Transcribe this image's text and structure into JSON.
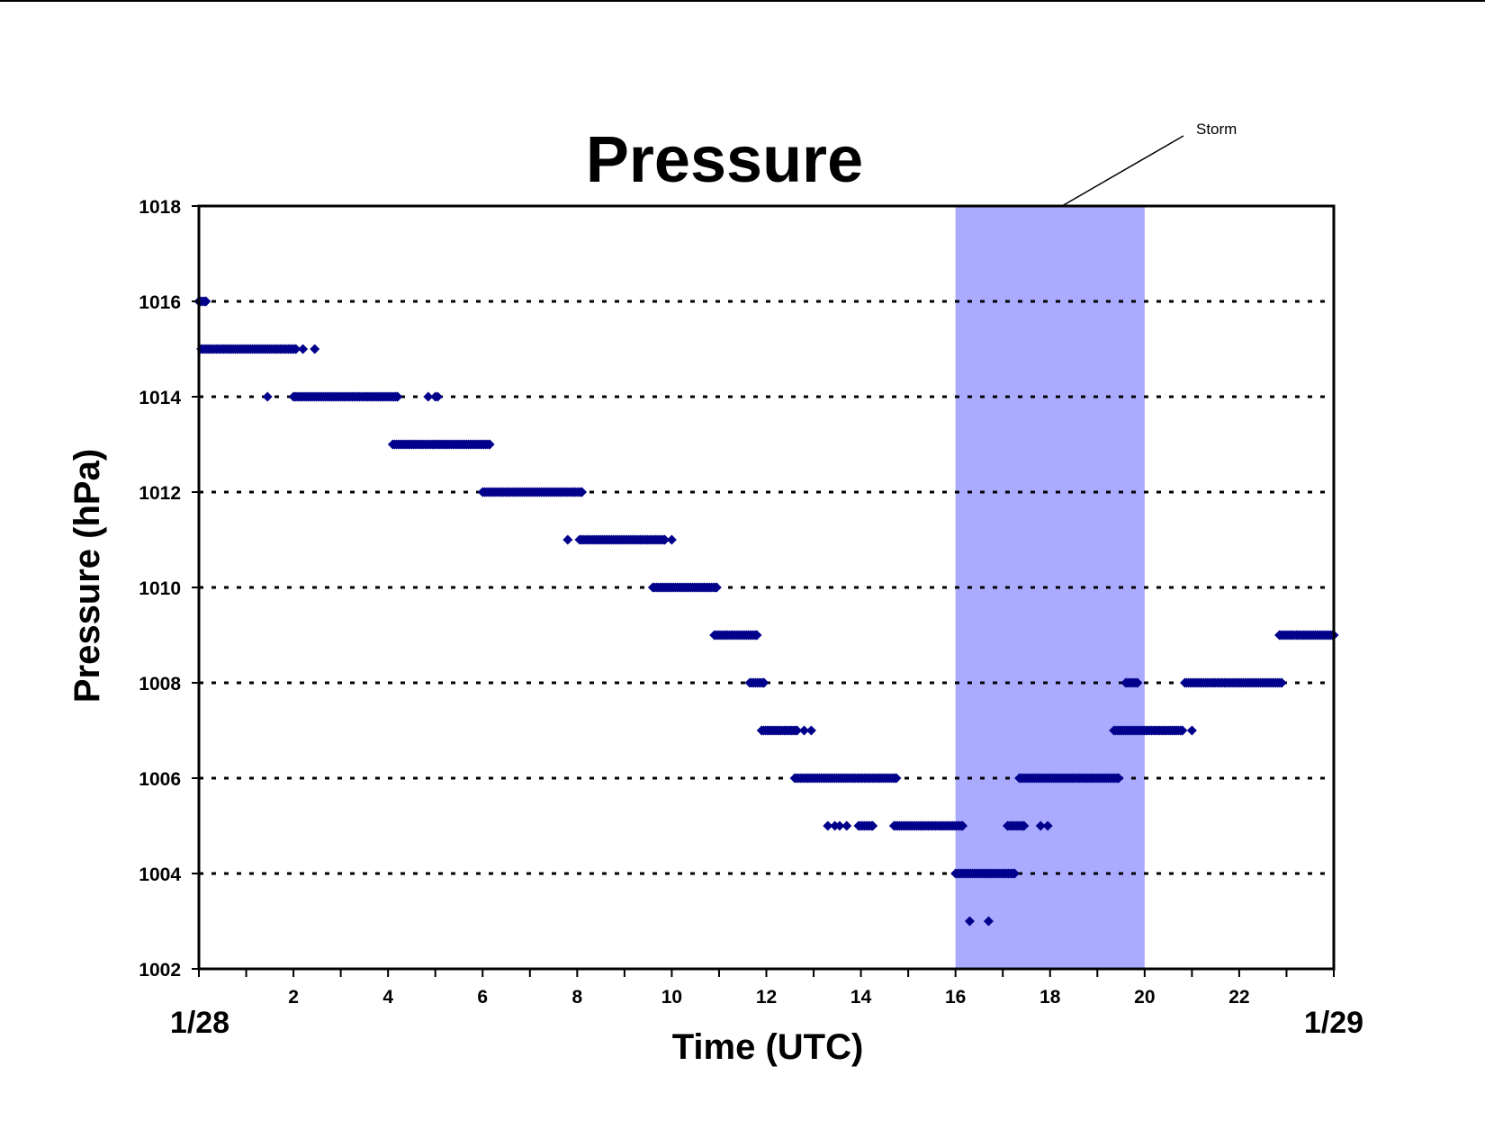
{
  "chart_data": {
    "type": "scatter",
    "title": "Pressure",
    "xlabel": "Time (UTC)",
    "ylabel": "Pressure (hPa)",
    "xlim": [
      0,
      24
    ],
    "ylim": [
      1002,
      1018
    ],
    "x_ticks": [
      2,
      4,
      6,
      8,
      10,
      12,
      14,
      16,
      18,
      20,
      22
    ],
    "x_minor_tick_step": 1,
    "y_ticks": [
      1002,
      1004,
      1006,
      1008,
      1010,
      1012,
      1014,
      1016,
      1018
    ],
    "x_end_labels": {
      "start": "1/28",
      "end": "1/29"
    },
    "grid": "horizontal dotted",
    "legend": "none",
    "marker_color": "#00008B",
    "highlight": {
      "label": "Storm",
      "x_start": 16,
      "x_end": 20,
      "color": "#AAAAFF"
    },
    "series": [
      {
        "segments": [
          {
            "y": 1016,
            "x_start": 0.0,
            "x_end": 0.15
          },
          {
            "y": 1015,
            "x_start": 0.05,
            "x_end": 2.05
          },
          {
            "y": 1015,
            "points": [
              2.2,
              2.45
            ]
          },
          {
            "y": 1014,
            "points": [
              1.45
            ]
          },
          {
            "y": 1014,
            "x_start": 2.0,
            "x_end": 4.2
          },
          {
            "y": 1014,
            "points": [
              4.85,
              5.0,
              5.05
            ]
          },
          {
            "y": 1013,
            "x_start": 4.1,
            "x_end": 6.15
          },
          {
            "y": 1012,
            "x_start": 6.0,
            "x_end": 8.1
          },
          {
            "y": 1011,
            "points": [
              7.8
            ]
          },
          {
            "y": 1011,
            "x_start": 8.05,
            "x_end": 9.85
          },
          {
            "y": 1011,
            "points": [
              10.0
            ]
          },
          {
            "y": 1010,
            "x_start": 9.6,
            "x_end": 10.95
          },
          {
            "y": 1009,
            "x_start": 10.9,
            "x_end": 11.8
          },
          {
            "y": 1008,
            "x_start": 11.65,
            "x_end": 11.95
          },
          {
            "y": 1007,
            "x_start": 11.9,
            "x_end": 12.65
          },
          {
            "y": 1007,
            "points": [
              12.8,
              12.95
            ]
          },
          {
            "y": 1006,
            "x_start": 12.6,
            "x_end": 14.75
          },
          {
            "y": 1005,
            "points": [
              13.3,
              13.45,
              13.55,
              13.7
            ]
          },
          {
            "y": 1005,
            "x_start": 13.95,
            "x_end": 14.25
          },
          {
            "y": 1005,
            "x_start": 14.7,
            "x_end": 16.15
          },
          {
            "y": 1004,
            "x_start": 16.0,
            "x_end": 17.25
          },
          {
            "y": 1003,
            "points": [
              16.3,
              16.7
            ]
          },
          {
            "y": 1005,
            "x_start": 17.1,
            "x_end": 17.45
          },
          {
            "y": 1005,
            "points": [
              17.8,
              17.95
            ]
          },
          {
            "y": 1006,
            "x_start": 17.35,
            "x_end": 19.45
          },
          {
            "y": 1008,
            "x_start": 19.6,
            "x_end": 19.85
          },
          {
            "y": 1007,
            "x_start": 19.35,
            "x_end": 20.8
          },
          {
            "y": 1007,
            "points": [
              21.0
            ]
          },
          {
            "y": 1008,
            "x_start": 20.85,
            "x_end": 22.9
          },
          {
            "y": 1009,
            "x_start": 22.85,
            "x_end": 24.0
          }
        ]
      }
    ]
  }
}
